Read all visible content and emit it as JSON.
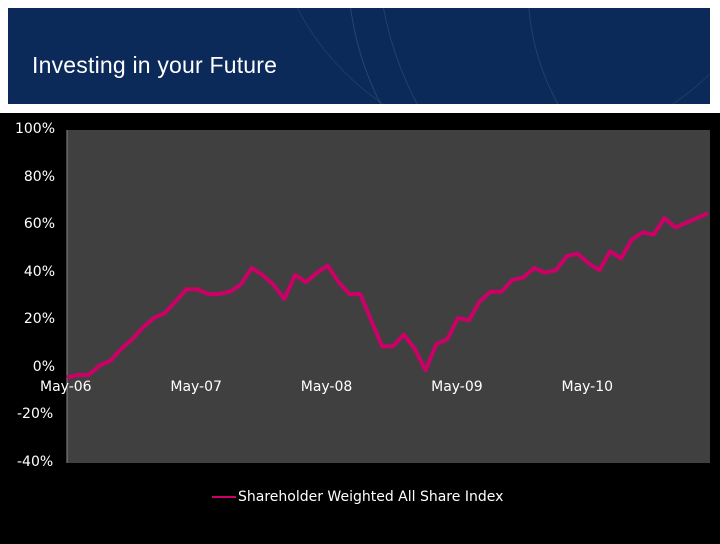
{
  "header": {
    "title": "Investing in your Future",
    "colors": {
      "banner": "#0b2a5a",
      "frame": "#ffffff"
    }
  },
  "chart_data": {
    "type": "line",
    "title": "",
    "xlabel": "",
    "ylabel": "",
    "y_tick_labels": [
      "100%",
      "80%",
      "60%",
      "40%",
      "20%",
      "0%",
      "-20%",
      "-40%"
    ],
    "x_tick_labels": [
      "May-06",
      "May-07",
      "May-08",
      "May-09",
      "May-10"
    ],
    "ylim": [
      -40,
      100
    ],
    "grid": false,
    "legend_position": "bottom",
    "plot_background": "#404040",
    "series": [
      {
        "name": "Shareholder Weighted All Share Index",
        "color": "#cc0066",
        "x": [
          "May-06",
          "Jul-06",
          "Aug-06",
          "Sep-06",
          "Oct-06",
          "Nov-06",
          "Dec-06",
          "Jan-07",
          "Feb-07",
          "Mar-07",
          "Apr-07",
          "May-07",
          "Jun-07",
          "Jul-07",
          "Aug-07",
          "Sep-07",
          "Oct-07",
          "Nov-07",
          "Dec-07",
          "Jan-08",
          "Feb-08",
          "Mar-08",
          "Apr-08",
          "May-08",
          "Jun-08",
          "Jul-08",
          "Aug-08",
          "Sep-08",
          "Oct-08",
          "Nov-08",
          "Dec-08",
          "Jan-09",
          "Feb-09",
          "Mar-09",
          "Apr-09",
          "May-09",
          "Jun-09",
          "Jul-09",
          "Aug-09",
          "Sep-09",
          "Oct-09",
          "Nov-09",
          "Dec-09",
          "Jan-10",
          "Feb-10",
          "Mar-10",
          "Apr-10",
          "May-10",
          "Jun-10",
          "Jul-10",
          "Aug-10",
          "Sep-10",
          "Oct-10",
          "Nov-10",
          "Dec-10",
          "Jan-11",
          "Feb-11",
          "Mar-11",
          "Apr-11",
          "May-11"
        ],
        "values": [
          -4,
          -3,
          -3,
          1,
          3,
          8,
          12,
          17,
          21,
          23,
          28,
          33,
          33,
          31,
          31,
          32,
          35,
          42,
          39,
          35,
          29,
          39,
          36,
          40,
          43,
          36,
          31,
          31,
          20,
          9,
          9,
          14,
          8,
          -1,
          10,
          12,
          21,
          20,
          28,
          32,
          32,
          37,
          38,
          42,
          40,
          41,
          47,
          48,
          44,
          41,
          49,
          46,
          54,
          57,
          56,
          63,
          59,
          61,
          63,
          65
        ]
      }
    ]
  }
}
